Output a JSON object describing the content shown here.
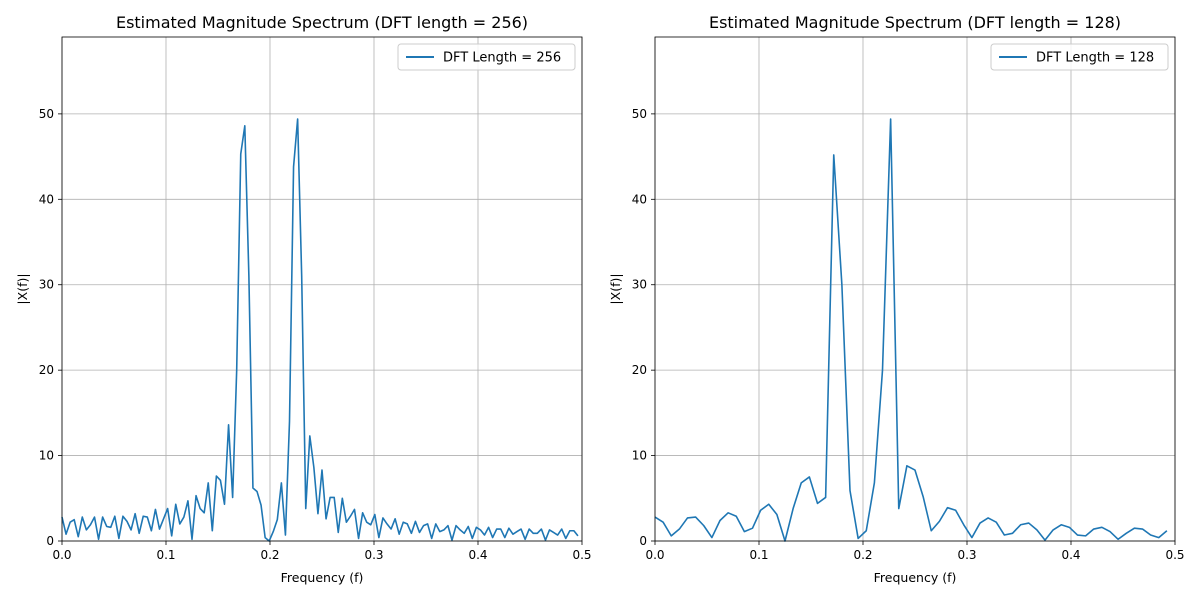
{
  "chart_data": [
    {
      "type": "line",
      "title": "Estimated Magnitude Spectrum (DFT length = 256)",
      "xlabel": "Frequency (f)",
      "ylabel": "|X(f)|",
      "xlim": [
        0,
        0.5
      ],
      "ylim": [
        0,
        59
      ],
      "xticks": [
        "0.0",
        "0.1",
        "0.2",
        "0.3",
        "0.4",
        "0.5"
      ],
      "yticks": [
        "0",
        "10",
        "20",
        "30",
        "40",
        "50"
      ],
      "grid": true,
      "legend_position": "top-right",
      "color": "#1f77b4",
      "series": [
        {
          "name": "DFT Length = 256",
          "x_step": 0.00390625,
          "values": [
            2.8,
            0.8,
            2.2,
            2.5,
            0.5,
            2.8,
            1.3,
            1.9,
            2.8,
            0.2,
            2.8,
            1.7,
            1.6,
            2.9,
            0.3,
            2.9,
            2.3,
            1.3,
            3.2,
            0.9,
            2.9,
            2.8,
            1.2,
            3.7,
            1.4,
            2.6,
            3.8,
            0.6,
            4.3,
            2.0,
            2.8,
            4.7,
            0.2,
            5.3,
            3.8,
            3.3,
            6.8,
            1.2,
            7.6,
            7.1,
            4.3,
            13.6,
            5.1,
            20.0,
            45.3,
            48.6,
            31.0,
            6.2,
            5.8,
            4.2,
            0.4,
            0.0,
            1.1,
            2.5,
            6.8,
            0.7,
            14.0,
            43.8,
            49.4,
            31.0,
            3.8,
            12.3,
            8.6,
            3.2,
            8.3,
            2.6,
            5.1,
            5.1,
            1.0,
            5.0,
            2.2,
            2.9,
            3.7,
            0.3,
            3.3,
            2.2,
            1.9,
            3.1,
            0.4,
            2.7,
            2.0,
            1.4,
            2.6,
            0.8,
            2.2,
            2.0,
            0.9,
            2.3,
            1.0,
            1.8,
            2.0,
            0.3,
            2.0,
            1.1,
            1.3,
            1.8,
            0.1,
            1.8,
            1.3,
            0.9,
            1.7,
            0.3,
            1.6,
            1.3,
            0.7,
            1.6,
            0.4,
            1.4,
            1.4,
            0.4,
            1.5,
            0.8,
            1.1,
            1.4,
            0.2,
            1.4,
            0.9,
            0.9,
            1.4,
            0.1,
            1.3,
            1.0,
            0.7,
            1.4,
            0.3,
            1.2,
            1.2,
            0.6
          ]
        }
      ]
    },
    {
      "type": "line",
      "title": "Estimated Magnitude Spectrum (DFT length = 128)",
      "xlabel": "Frequency (f)",
      "ylabel": "|X(f)|",
      "xlim": [
        0,
        0.5
      ],
      "ylim": [
        0,
        59
      ],
      "xticks": [
        "0.0",
        "0.1",
        "0.2",
        "0.3",
        "0.4",
        "0.5"
      ],
      "yticks": [
        "0",
        "10",
        "20",
        "30",
        "40",
        "50"
      ],
      "grid": true,
      "legend_position": "top-right",
      "color": "#1f77b4",
      "series": [
        {
          "name": "DFT Length = 128",
          "x_step": 0.0078125,
          "values": [
            2.8,
            2.2,
            0.6,
            1.4,
            2.7,
            2.8,
            1.8,
            0.4,
            2.4,
            3.3,
            2.9,
            1.1,
            1.5,
            3.6,
            4.3,
            3.1,
            0.0,
            3.8,
            6.8,
            7.5,
            4.4,
            5.1,
            45.2,
            30.0,
            5.9,
            0.3,
            1.2,
            6.8,
            20.0,
            49.4,
            3.8,
            8.8,
            8.3,
            5.2,
            1.2,
            2.3,
            3.9,
            3.6,
            1.9,
            0.4,
            2.1,
            2.7,
            2.2,
            0.7,
            0.9,
            1.9,
            2.1,
            1.3,
            0.1,
            1.3,
            1.9,
            1.6,
            0.7,
            0.6,
            1.4,
            1.6,
            1.1,
            0.2,
            0.9,
            1.5,
            1.4,
            0.7,
            0.4,
            1.2
          ]
        }
      ]
    }
  ]
}
